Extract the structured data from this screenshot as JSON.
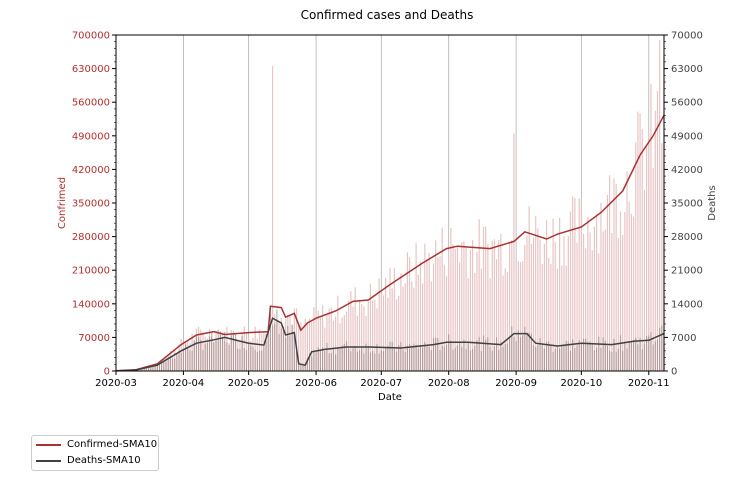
{
  "chart_data": {
    "type": "bar+line",
    "title": "Confirmed cases and Deaths",
    "xlabel": "Date",
    "ylabel_left": "Confrimed",
    "ylabel_right": "Deaths",
    "x_range": [
      "2020-03-01",
      "2020-11-08"
    ],
    "ylim_left": [
      0,
      700000
    ],
    "ylim_right": [
      0,
      70000
    ],
    "xticks": [
      "2020-03",
      "2020-04",
      "2020-05",
      "2020-06",
      "2020-07",
      "2020-08",
      "2020-09",
      "2020-10",
      "2020-11"
    ],
    "yticks_left": [
      "0",
      "70000",
      "140000",
      "210000",
      "280000",
      "350000",
      "420000",
      "490000",
      "560000",
      "630000",
      "700000"
    ],
    "yticks_right": [
      "0",
      "7000",
      "14000",
      "21000",
      "28000",
      "35000",
      "42000",
      "49000",
      "56000",
      "63000",
      "70000"
    ],
    "grid": "vertical",
    "legend_position": "below-left",
    "colors": {
      "confirmed_line": "#a83232",
      "confirmed_bar": "#e8c4c4",
      "deaths_line": "#404040",
      "deaths_bar": "#8c7777",
      "left_axis_text": "#b03030",
      "right_axis_text": "#444444",
      "grid": "#b0b0b0"
    },
    "series": [
      {
        "name": "Confirmed-SMA10",
        "axis": "left",
        "points": [
          [
            "2020-03-01",
            500
          ],
          [
            "2020-03-10",
            2500
          ],
          [
            "2020-03-20",
            15000
          ],
          [
            "2020-03-31",
            55000
          ],
          [
            "2020-04-07",
            75000
          ],
          [
            "2020-04-15",
            82000
          ],
          [
            "2020-04-20",
            76000
          ],
          [
            "2020-05-01",
            80000
          ],
          [
            "2020-05-10",
            82000
          ],
          [
            "2020-05-11",
            135000
          ],
          [
            "2020-05-16",
            132000
          ],
          [
            "2020-05-18",
            112000
          ],
          [
            "2020-05-22",
            120000
          ],
          [
            "2020-05-25",
            85000
          ],
          [
            "2020-05-28",
            100000
          ],
          [
            "2020-06-01",
            110000
          ],
          [
            "2020-06-10",
            125000
          ],
          [
            "2020-06-18",
            145000
          ],
          [
            "2020-06-25",
            148000
          ],
          [
            "2020-07-05",
            180000
          ],
          [
            "2020-07-10",
            195000
          ],
          [
            "2020-07-20",
            225000
          ],
          [
            "2020-07-31",
            255000
          ],
          [
            "2020-08-05",
            260000
          ],
          [
            "2020-08-20",
            255000
          ],
          [
            "2020-08-31",
            270000
          ],
          [
            "2020-09-05",
            290000
          ],
          [
            "2020-09-15",
            275000
          ],
          [
            "2020-09-20",
            285000
          ],
          [
            "2020-10-01",
            300000
          ],
          [
            "2020-10-10",
            330000
          ],
          [
            "2020-10-20",
            375000
          ],
          [
            "2020-10-28",
            450000
          ],
          [
            "2020-11-03",
            490000
          ],
          [
            "2020-11-08",
            533000
          ]
        ]
      },
      {
        "name": "Deaths-SMA10",
        "axis": "right",
        "points": [
          [
            "2020-03-01",
            20
          ],
          [
            "2020-03-10",
            200
          ],
          [
            "2020-03-20",
            1200
          ],
          [
            "2020-03-31",
            4200
          ],
          [
            "2020-04-07",
            5800
          ],
          [
            "2020-04-15",
            6500
          ],
          [
            "2020-04-20",
            7000
          ],
          [
            "2020-05-01",
            5800
          ],
          [
            "2020-05-08",
            5400
          ],
          [
            "2020-05-12",
            11000
          ],
          [
            "2020-05-16",
            10000
          ],
          [
            "2020-05-18",
            7500
          ],
          [
            "2020-05-22",
            8000
          ],
          [
            "2020-05-24",
            1500
          ],
          [
            "2020-05-27",
            1200
          ],
          [
            "2020-05-30",
            4000
          ],
          [
            "2020-06-05",
            4500
          ],
          [
            "2020-06-15",
            5000
          ],
          [
            "2020-06-25",
            5000
          ],
          [
            "2020-07-10",
            4800
          ],
          [
            "2020-07-25",
            5500
          ],
          [
            "2020-07-31",
            6000
          ],
          [
            "2020-08-10",
            6000
          ],
          [
            "2020-08-25",
            5500
          ],
          [
            "2020-08-31",
            7800
          ],
          [
            "2020-09-06",
            7800
          ],
          [
            "2020-09-10",
            5800
          ],
          [
            "2020-09-20",
            5200
          ],
          [
            "2020-10-01",
            5800
          ],
          [
            "2020-10-15",
            5500
          ],
          [
            "2020-10-25",
            6200
          ],
          [
            "2020-11-01",
            6400
          ],
          [
            "2020-11-08",
            7800
          ]
        ]
      }
    ],
    "bars": {
      "description": "daily Confirmed (left axis) and Deaths (right axis) bars",
      "confirmed_daily_noise": 0.18,
      "confirmed_spikes": [
        [
          "2020-05-12",
          635000
        ],
        [
          "2020-08-31",
          495000
        ],
        [
          "2020-11-06",
          690000
        ]
      ],
      "deaths_spikes": [
        [
          "2020-05-12",
          9500
        ],
        [
          "2020-09-02",
          8500
        ],
        [
          "2020-11-06",
          9000
        ]
      ]
    }
  }
}
